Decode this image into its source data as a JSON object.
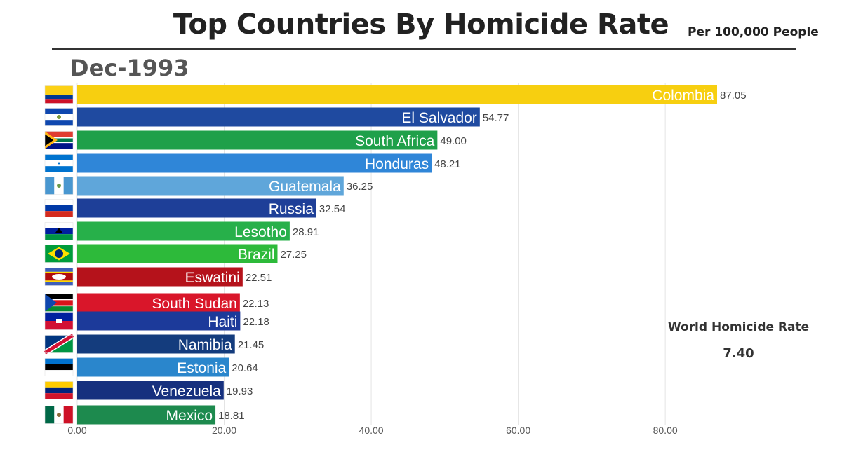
{
  "header": {
    "title": "Top Countries By Homicide Rate",
    "subtitle": "Per 100,000 People",
    "period": "Dec-1993"
  },
  "world": {
    "label": "World Homicide Rate",
    "value": "7.40"
  },
  "chart_data": {
    "type": "bar",
    "orientation": "horizontal",
    "title": "Top Countries By Homicide Rate",
    "subtitle": "Per 100,000 People",
    "period": "Dec-1993",
    "xlim": [
      0,
      87.05
    ],
    "grid": true,
    "ticks": [
      0,
      20,
      40,
      60,
      80
    ],
    "tick_labels": [
      "0.00",
      "20.00",
      "40.00",
      "60.00",
      "80.00"
    ],
    "categories": [
      "Colombia",
      "El Salvador",
      "South Africa",
      "Honduras",
      "Guatemala",
      "Russia",
      "Lesotho",
      "Brazil",
      "Eswatini",
      "South Sudan",
      "Haiti",
      "Namibia",
      "Estonia",
      "Venezuela",
      "Mexico"
    ],
    "values": [
      87.05,
      54.77,
      49.0,
      48.21,
      36.25,
      32.54,
      28.91,
      27.25,
      22.51,
      22.13,
      22.18,
      21.45,
      20.64,
      19.93,
      18.81
    ],
    "value_labels": [
      "87.05",
      "54.77",
      "49.00",
      "48.21",
      "36.25",
      "32.54",
      "28.91",
      "27.25",
      "22.51",
      "22.13",
      "22.18",
      "21.45",
      "20.64",
      "19.93",
      "18.81"
    ],
    "colors": [
      "#F7CF10",
      "#1F4AA0",
      "#1FA04A",
      "#2F86D8",
      "#5FA6DA",
      "#1E3F98",
      "#27B04A",
      "#2DBA3A",
      "#B5121B",
      "#D9162A",
      "#1C3A9A",
      "#143C7D",
      "#2A86CC",
      "#16307E",
      "#1D8A4E"
    ],
    "flags": [
      "colombia-flag",
      "el-salvador-flag",
      "south-africa-flag",
      "honduras-flag",
      "guatemala-flag",
      "russia-flag",
      "lesotho-flag",
      "brazil-flag",
      "eswatini-flag",
      "south-sudan-flag",
      "haiti-flag",
      "namibia-flag",
      "estonia-flag",
      "venezuela-flag",
      "mexico-flag"
    ]
  }
}
